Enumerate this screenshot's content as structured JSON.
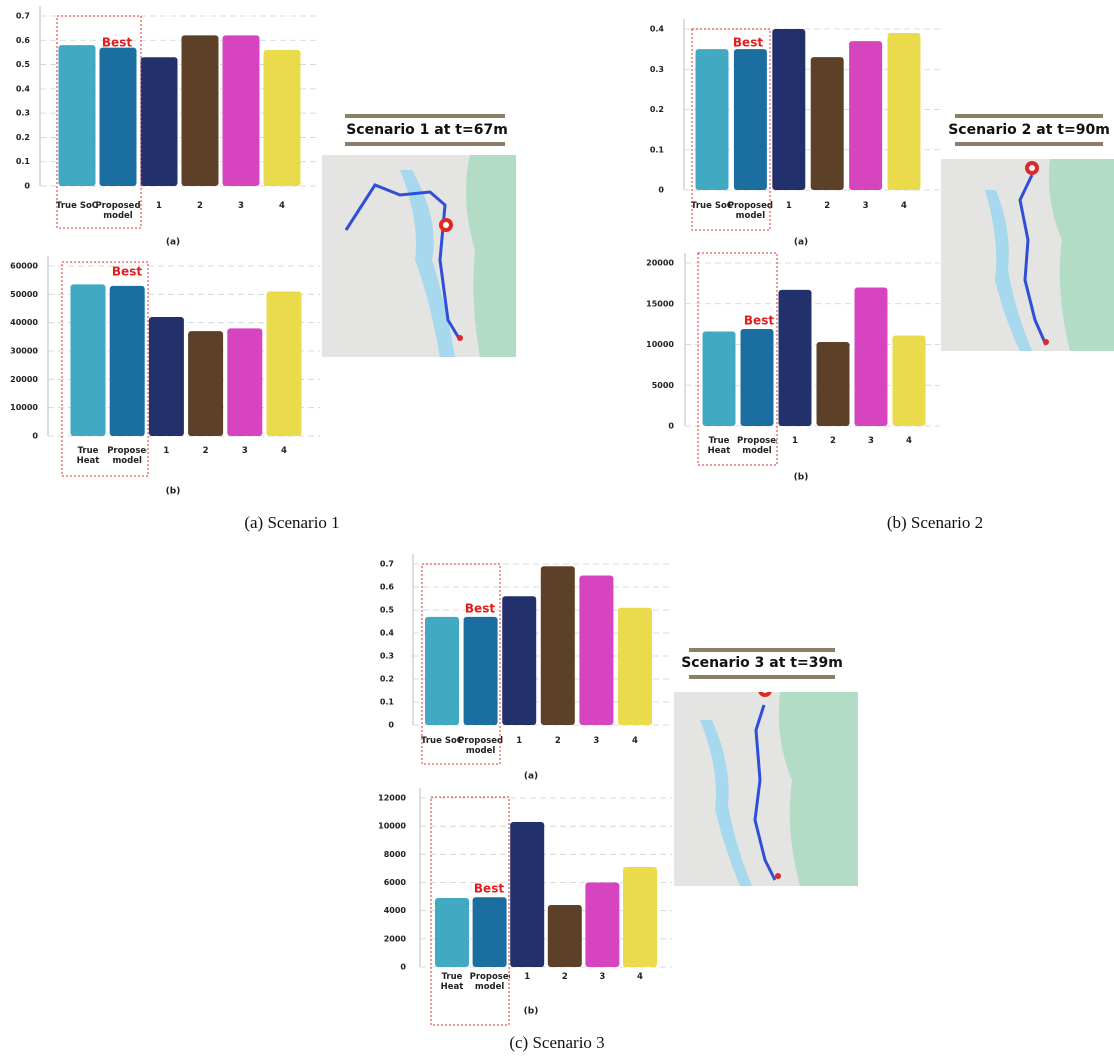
{
  "chart_data": [
    {
      "type": "bar",
      "panel_label": "(a)",
      "annotation": "Best",
      "categories": [
        "True SoC",
        "Proposed model",
        "1",
        "2",
        "3",
        "4"
      ],
      "values": [
        0.58,
        0.57,
        0.53,
        0.62,
        0.62,
        0.56
      ],
      "colors": [
        "#42a9c2",
        "#1a6fa0",
        "#22306b",
        "#5c4128",
        "#d744c0",
        "#eadb4c"
      ],
      "ylim": [
        0,
        0.7
      ],
      "yticks": [
        0,
        0.1,
        0.2,
        0.3,
        0.4,
        0.5,
        0.6,
        0.7
      ],
      "grid": true
    },
    {
      "type": "bar",
      "panel_label": "(b)",
      "annotation": "Best",
      "categories": [
        "True Heat",
        "Proposed model",
        "1",
        "2",
        "3",
        "4"
      ],
      "values": [
        53500,
        53000,
        42000,
        37000,
        38000,
        51000
      ],
      "colors": [
        "#42a9c2",
        "#1a6fa0",
        "#22306b",
        "#5c4128",
        "#d744c0",
        "#eadb4c"
      ],
      "ylim": [
        0,
        60000
      ],
      "yticks": [
        0,
        10000,
        20000,
        30000,
        40000,
        50000,
        60000
      ],
      "grid": true
    },
    {
      "type": "bar",
      "panel_label": "(a)",
      "annotation": "Best",
      "categories": [
        "True SoC",
        "Proposed model",
        "1",
        "2",
        "3",
        "4"
      ],
      "values": [
        0.35,
        0.35,
        0.4,
        0.33,
        0.37,
        0.39
      ],
      "colors": [
        "#42a9c2",
        "#1a6fa0",
        "#22306b",
        "#5c4128",
        "#d744c0",
        "#eadb4c"
      ],
      "ylim": [
        0,
        0.4
      ],
      "yticks": [
        0,
        0.1,
        0.2,
        0.3,
        0.4
      ],
      "grid": true
    },
    {
      "type": "bar",
      "panel_label": "(b)",
      "annotation": "Best",
      "categories": [
        "True Heat",
        "Proposed model",
        "1",
        "2",
        "3",
        "4"
      ],
      "values": [
        11600,
        11900,
        16700,
        10300,
        17000,
        11100
      ],
      "colors": [
        "#42a9c2",
        "#1a6fa0",
        "#22306b",
        "#5c4128",
        "#d744c0",
        "#eadb4c"
      ],
      "ylim": [
        0,
        20000
      ],
      "yticks": [
        0,
        5000,
        10000,
        15000,
        20000
      ],
      "grid": true
    },
    {
      "type": "bar",
      "panel_label": "(a)",
      "annotation": "Best",
      "categories": [
        "True SoC",
        "Proposed model",
        "1",
        "2",
        "3",
        "4"
      ],
      "values": [
        0.47,
        0.47,
        0.56,
        0.69,
        0.65,
        0.51
      ],
      "colors": [
        "#42a9c2",
        "#1a6fa0",
        "#22306b",
        "#5c4128",
        "#d744c0",
        "#eadb4c"
      ],
      "ylim": [
        0,
        0.7
      ],
      "yticks": [
        0,
        0.1,
        0.2,
        0.3,
        0.4,
        0.5,
        0.6,
        0.7
      ],
      "grid": true
    },
    {
      "type": "bar",
      "panel_label": "(b)",
      "annotation": "Best",
      "categories": [
        "True Heat",
        "Proposed model",
        "1",
        "2",
        "3",
        "4"
      ],
      "values": [
        4900,
        4950,
        10300,
        4400,
        6000,
        7100
      ],
      "colors": [
        "#42a9c2",
        "#1a6fa0",
        "#22306b",
        "#5c4128",
        "#d744c0",
        "#eadb4c"
      ],
      "ylim": [
        0,
        12000
      ],
      "yticks": [
        0,
        2000,
        4000,
        6000,
        8000,
        10000,
        12000
      ],
      "grid": true
    }
  ],
  "map_titles": [
    "Scenario 1 at t=67m",
    "Scenario 2 at t=90m",
    "Scenario 3 at t=39m"
  ],
  "captions": [
    "(a)  Scenario 1",
    "(b)  Scenario 2",
    "(c)  Scenario 3"
  ]
}
